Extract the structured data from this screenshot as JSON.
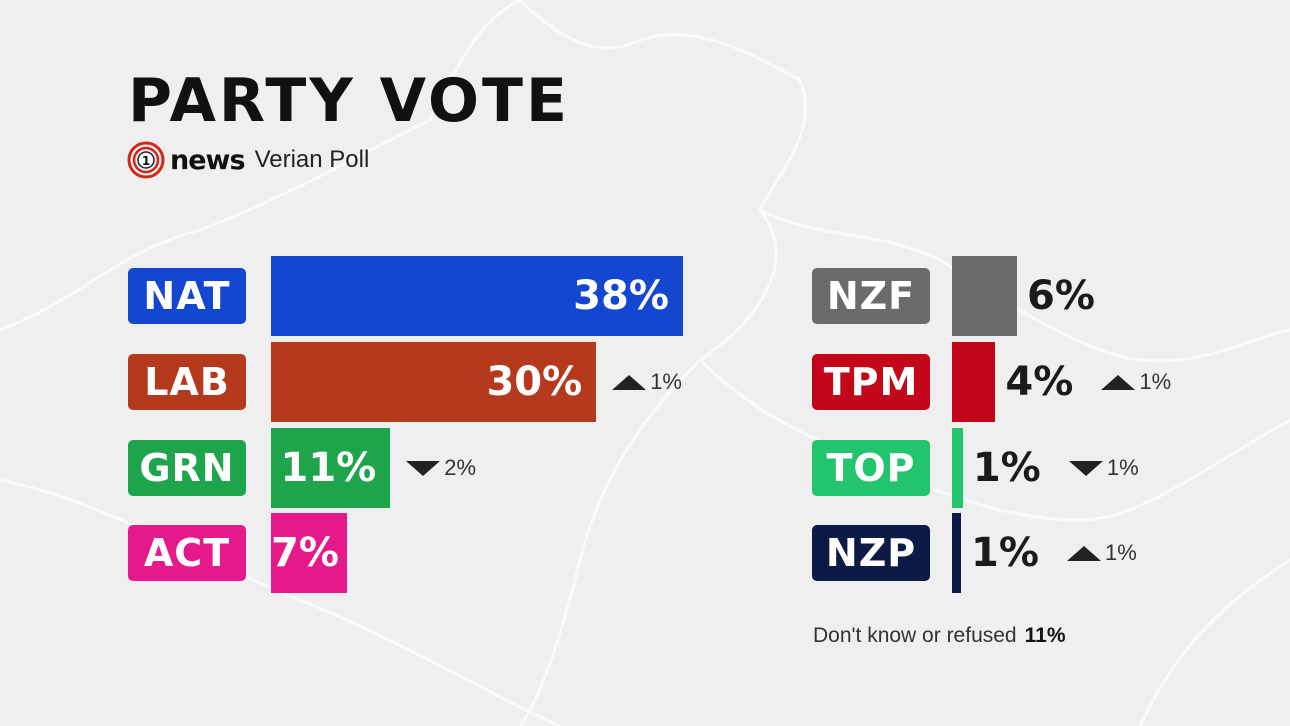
{
  "title": "PARTY VOTE",
  "brand": {
    "logo_text": "1news",
    "subtitle": "Verian Poll"
  },
  "chart_data": {
    "type": "bar",
    "title": "PARTY VOTE",
    "subtitle": "Verian Poll",
    "unit": "%",
    "parties": [
      {
        "name": "NAT",
        "value": 38,
        "display": "38%",
        "color": "#1347d1",
        "change": null,
        "change_display": "",
        "column": "left"
      },
      {
        "name": "LAB",
        "value": 30,
        "display": "30%",
        "color": "#b5391c",
        "change": 1,
        "change_display": "1%",
        "column": "left"
      },
      {
        "name": "GRN",
        "value": 11,
        "display": "11%",
        "color": "#1ea44a",
        "change": -2,
        "change_display": "2%",
        "column": "left"
      },
      {
        "name": "ACT",
        "value": 7,
        "display": "7%",
        "color": "#e5198a",
        "change": null,
        "change_display": "",
        "column": "left"
      },
      {
        "name": "NZF",
        "value": 6,
        "display": "6%",
        "color": "#6b6b6b",
        "change": null,
        "change_display": "",
        "column": "right"
      },
      {
        "name": "TPM",
        "value": 4,
        "display": "4%",
        "color": "#c4061a",
        "change": 1,
        "change_display": "1%",
        "column": "right"
      },
      {
        "name": "TOP",
        "value": 1,
        "display": "1%",
        "color": "#22c46d",
        "change": -1,
        "change_display": "1%",
        "column": "right"
      },
      {
        "name": "NZP",
        "value": 1,
        "display": "1%",
        "color": "#0d1a45",
        "change": 1,
        "change_display": "1%",
        "column": "right"
      }
    ],
    "footnote": {
      "label": "Don't know or refused",
      "value": "11%"
    }
  }
}
